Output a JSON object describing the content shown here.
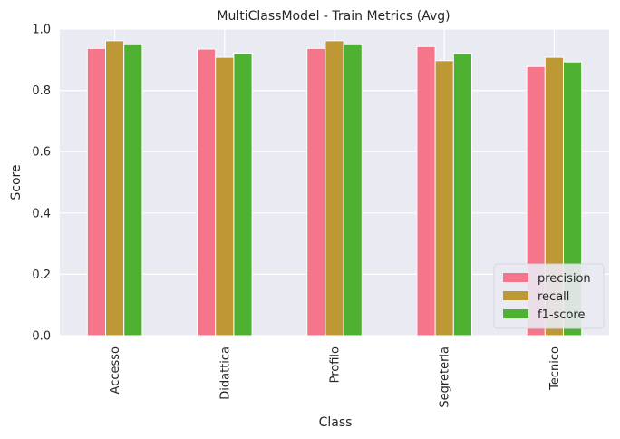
{
  "chart_data": {
    "type": "bar",
    "title": "MultiClassModel - Train Metrics (Avg)",
    "xlabel": "Class",
    "ylabel": "Score",
    "ylim": [
      0,
      1.0
    ],
    "yticks": [
      "0.0",
      "0.2",
      "0.4",
      "0.6",
      "0.8",
      "1.0"
    ],
    "grid": true,
    "legend_position": "lower-right",
    "categories": [
      "Accesso",
      "Didattica",
      "Profilo",
      "Segreteria",
      "Tecnico"
    ],
    "series": [
      {
        "name": "precision",
        "color": "#f5758a",
        "values": [
          0.937,
          0.935,
          0.937,
          0.943,
          0.878
        ]
      },
      {
        "name": "recall",
        "color": "#bd9834",
        "values": [
          0.962,
          0.908,
          0.962,
          0.897,
          0.908
        ]
      },
      {
        "name": "f1-score",
        "color": "#4fb132",
        "values": [
          0.949,
          0.921,
          0.949,
          0.92,
          0.893
        ]
      }
    ]
  }
}
